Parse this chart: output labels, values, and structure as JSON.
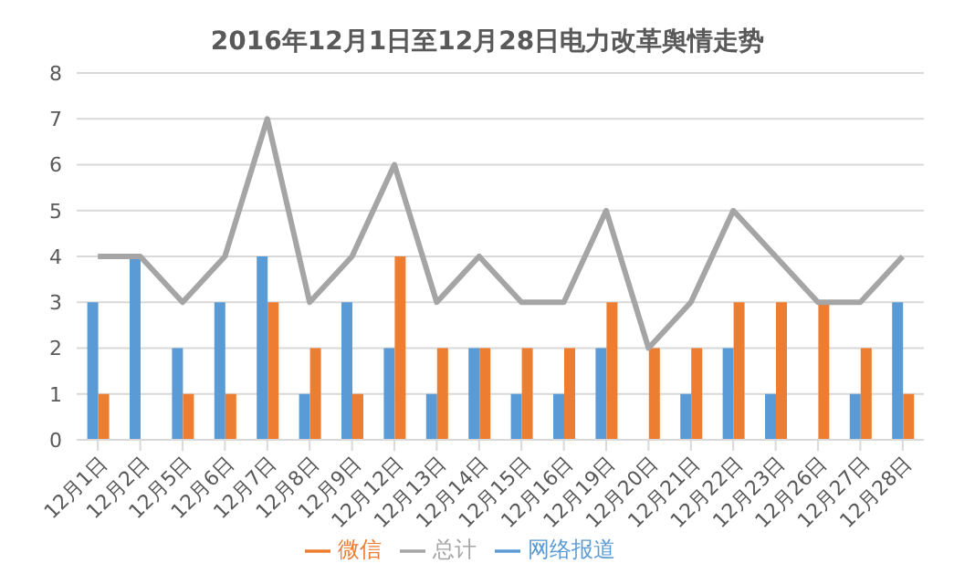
{
  "chart_data": {
    "type": "bar",
    "title": "2016年12月1日至12月28日电力改革舆情走势",
    "categories": [
      "12月1日",
      "12月2日",
      "12月5日",
      "12月6日",
      "12月7日",
      "12月8日",
      "12月9日",
      "12月12日",
      "12月13日",
      "12月14日",
      "12月15日",
      "12月16日",
      "12月19日",
      "12月20日",
      "12月21日",
      "12月22日",
      "12月23日",
      "12月26日",
      "12月27日",
      "12月28日"
    ],
    "series": [
      {
        "name": "网络报道",
        "color": "#5b9bd5",
        "values": [
          3,
          4,
          2,
          3,
          4,
          1,
          3,
          2,
          1,
          2,
          1,
          1,
          2,
          0,
          1,
          2,
          1,
          0,
          1,
          3
        ]
      },
      {
        "name": "微信",
        "color": "#ed7d31",
        "values": [
          1,
          0,
          1,
          1,
          3,
          2,
          1,
          4,
          2,
          2,
          2,
          2,
          3,
          2,
          2,
          3,
          3,
          3,
          2,
          1
        ]
      },
      {
        "name": "总计",
        "type": "line",
        "color": "#a5a5a5",
        "values": [
          4,
          4,
          3,
          4,
          7,
          3,
          4,
          6,
          3,
          4,
          3,
          3,
          5,
          2,
          3,
          5,
          4,
          3,
          3,
          4
        ]
      }
    ],
    "ylim": [
      0,
      8
    ],
    "yticks": [
      0,
      1,
      2,
      3,
      4,
      5,
      6,
      7,
      8
    ],
    "grid": "y",
    "legend": "bottom",
    "marker": "none"
  }
}
